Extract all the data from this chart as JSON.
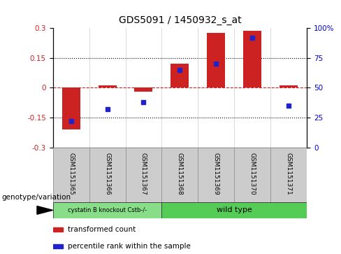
{
  "title": "GDS5091 / 1450932_s_at",
  "samples": [
    "GSM1151365",
    "GSM1151366",
    "GSM1151367",
    "GSM1151368",
    "GSM1151369",
    "GSM1151370",
    "GSM1151371"
  ],
  "bar_values": [
    -0.21,
    0.01,
    -0.02,
    0.12,
    0.275,
    0.285,
    0.01
  ],
  "dot_values": [
    22,
    32,
    38,
    65,
    70,
    92,
    35
  ],
  "bar_color": "#cc2222",
  "dot_color": "#2222cc",
  "ylim_left": [
    -0.3,
    0.3
  ],
  "ylim_right": [
    0,
    100
  ],
  "yticks_left": [
    -0.3,
    -0.15,
    0.0,
    0.15,
    0.3
  ],
  "yticks_left_labels": [
    "-0.3",
    "-0.15",
    "0",
    "0.15",
    "0.3"
  ],
  "yticks_right": [
    0,
    25,
    50,
    75,
    100
  ],
  "yticks_right_labels": [
    "0",
    "25",
    "50",
    "75",
    "100%"
  ],
  "hlines": [
    0.15,
    -0.15
  ],
  "hline_zero_color": "#cc2222",
  "hline_dotted_color": "#000000",
  "group1_label": "cystatin B knockout Cstb-/-",
  "group2_label": "wild type",
  "group1_color": "#88dd88",
  "group2_color": "#55cc55",
  "genotype_label": "genotype/variation",
  "legend_bar_label": "transformed count",
  "legend_dot_label": "percentile rank within the sample",
  "bar_width": 0.5,
  "tick_label_color_left": "#cc2222",
  "tick_label_color_right": "#0000cc",
  "xtick_box_color": "#cccccc",
  "xtick_box_edge": "#999999"
}
